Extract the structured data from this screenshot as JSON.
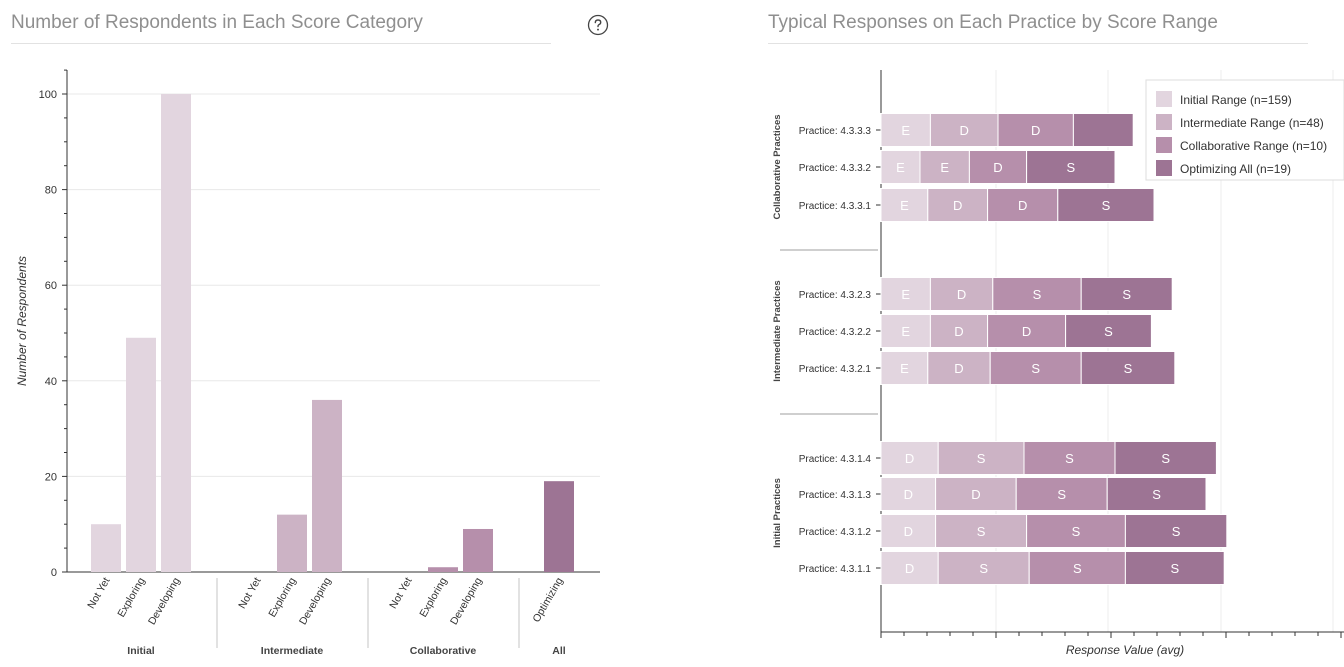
{
  "left_panel": {
    "title": "Number of Respondents in Each Score Category",
    "help_icon": "question-circle-icon"
  },
  "right_panel": {
    "title": "Typical Responses on Each Practice by Score Range"
  },
  "colors": {
    "initial": "#e2d5df",
    "intermediate": "#ccb3c5",
    "collaborative": "#b68fab",
    "optimizing": "#9d7494",
    "grid": "#e8e8e8",
    "axis": "#333333"
  },
  "chart_data": [
    {
      "type": "bar",
      "title": "Number of Respondents in Each Score Category",
      "ylabel": "Number of Respondents",
      "xlabel": "",
      "ylim": [
        0,
        100
      ],
      "yticks": [
        0,
        20,
        40,
        60,
        80,
        100
      ],
      "grid": true,
      "groups": [
        {
          "name": "Initial",
          "color_key": "initial",
          "categories": [
            "Not Yet",
            "Exploring",
            "Developing"
          ],
          "values": [
            10,
            49,
            100
          ]
        },
        {
          "name": "Intermediate",
          "color_key": "intermediate",
          "categories": [
            "Not Yet",
            "Exploring",
            "Developing"
          ],
          "values": [
            0,
            12,
            36
          ]
        },
        {
          "name": "Collaborative",
          "color_key": "collaborative",
          "categories": [
            "Not Yet",
            "Exploring",
            "Developing"
          ],
          "values": [
            0,
            1,
            9
          ]
        },
        {
          "name": "All",
          "color_key": "optimizing",
          "categories": [
            "Optimizing"
          ],
          "values": [
            19
          ]
        }
      ]
    },
    {
      "type": "bar",
      "orientation": "horizontal",
      "stacked": true,
      "title": "Typical Responses on Each Practice by Score Range",
      "xlabel": "Response Value (avg)",
      "legend_position": "top-right",
      "grid": true,
      "series": [
        {
          "name": "Initial Range (n=159)",
          "color_key": "initial"
        },
        {
          "name": "Intermediate Range (n=48)",
          "color_key": "intermediate"
        },
        {
          "name": "Collaborative Range (n=10)",
          "color_key": "collaborative"
        },
        {
          "name": "Optimizing All (n=19)",
          "color_key": "optimizing"
        }
      ],
      "groups": [
        {
          "name": "Collaborative Practices",
          "practices": [
            {
              "label": "Practice: 4.3.3.3",
              "segments": [
                0.19,
                0.26,
                0.29,
                0.23
              ],
              "letters": [
                "E",
                "D",
                "D",
                ""
              ]
            },
            {
              "label": "Practice: 4.3.3.2",
              "segments": [
                0.15,
                0.19,
                0.22,
                0.34
              ],
              "letters": [
                "E",
                "E",
                "D",
                "S"
              ]
            },
            {
              "label": "Practice: 4.3.3.1",
              "segments": [
                0.18,
                0.23,
                0.27,
                0.37
              ],
              "letters": [
                "E",
                "D",
                "D",
                "S"
              ]
            }
          ]
        },
        {
          "name": "Intermediate Practices",
          "practices": [
            {
              "label": "Practice: 4.3.2.3",
              "segments": [
                0.19,
                0.24,
                0.34,
                0.35
              ],
              "letters": [
                "E",
                "D",
                "S",
                "S"
              ]
            },
            {
              "label": "Practice: 4.3.2.2",
              "segments": [
                0.19,
                0.22,
                0.3,
                0.33
              ],
              "letters": [
                "E",
                "D",
                "D",
                "S"
              ]
            },
            {
              "label": "Practice: 4.3.2.1",
              "segments": [
                0.18,
                0.24,
                0.35,
                0.36
              ],
              "letters": [
                "E",
                "D",
                "S",
                "S"
              ]
            }
          ]
        },
        {
          "name": "Initial Practices",
          "practices": [
            {
              "label": "Practice: 4.3.1.4",
              "segments": [
                0.22,
                0.33,
                0.35,
                0.39
              ],
              "letters": [
                "D",
                "S",
                "S",
                "S"
              ]
            },
            {
              "label": "Practice: 4.3.1.3",
              "segments": [
                0.21,
                0.31,
                0.35,
                0.38
              ],
              "letters": [
                "D",
                "D",
                "S",
                "S"
              ]
            },
            {
              "label": "Practice: 4.3.1.2",
              "segments": [
                0.21,
                0.35,
                0.38,
                0.39
              ],
              "letters": [
                "D",
                "S",
                "S",
                "S"
              ]
            },
            {
              "label": "Practice: 4.3.1.1",
              "segments": [
                0.22,
                0.35,
                0.37,
                0.38
              ],
              "letters": [
                "D",
                "S",
                "S",
                "S"
              ]
            }
          ]
        }
      ]
    }
  ]
}
